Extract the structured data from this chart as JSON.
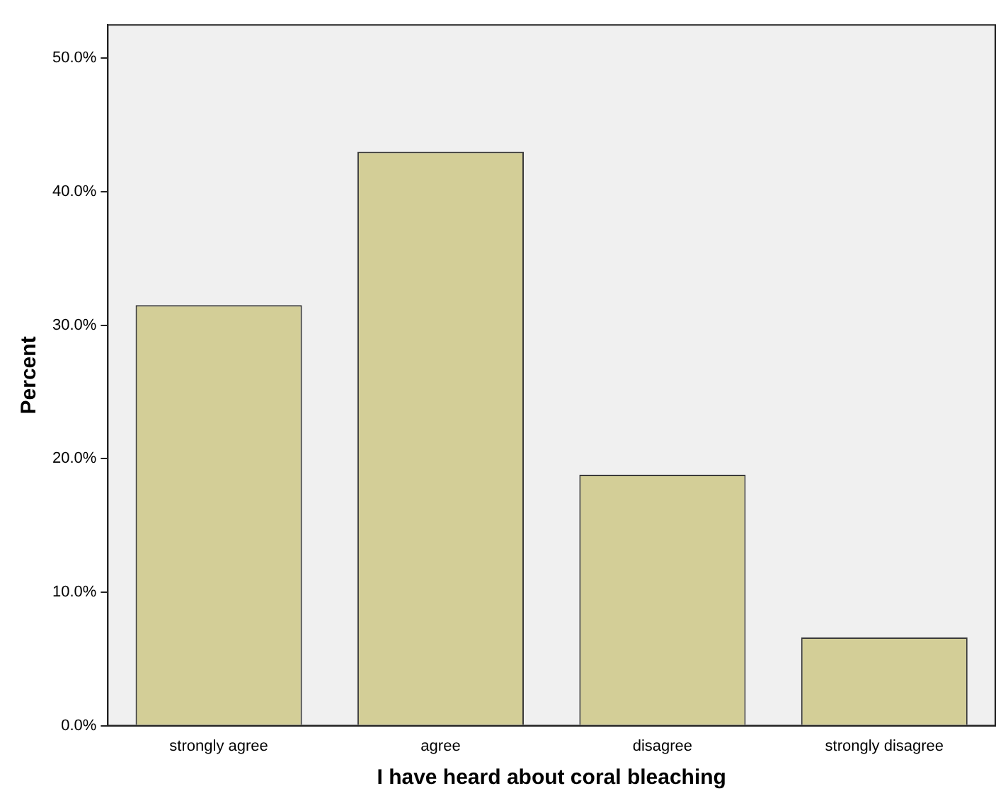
{
  "chart_data": {
    "type": "bar",
    "xlabel": "I have heard about coral bleaching",
    "ylabel": "Percent",
    "categories": [
      "strongly agree",
      "agree",
      "disagree",
      "strongly disagree"
    ],
    "values": [
      31.5,
      43.0,
      18.8,
      6.6
    ],
    "color": "#d3ce97",
    "ylim": [
      0,
      52.5
    ],
    "yticks": [
      {
        "value": 0,
        "label": "0.0%"
      },
      {
        "value": 10,
        "label": "10.0%"
      },
      {
        "value": 20,
        "label": "20.0%"
      },
      {
        "value": 30,
        "label": "30.0%"
      },
      {
        "value": 40,
        "label": "40.0%"
      },
      {
        "value": 50,
        "label": "50.0%"
      }
    ],
    "grid": false
  }
}
